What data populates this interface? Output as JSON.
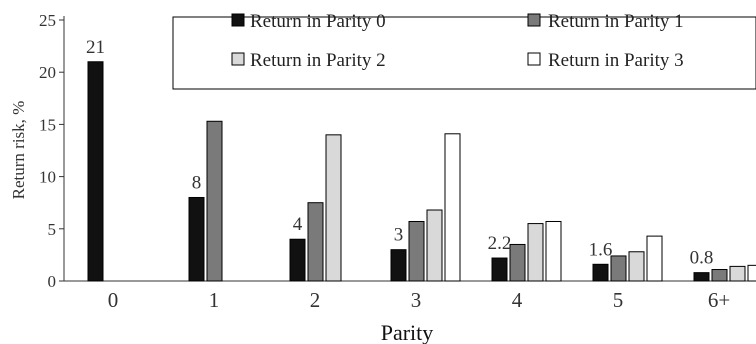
{
  "chart_data": {
    "type": "bar",
    "title": "",
    "xlabel": "Parity",
    "ylabel": "Return risk, %",
    "ylim": [
      0,
      25
    ],
    "yticks": [
      0,
      5,
      10,
      15,
      20,
      25
    ],
    "grid": false,
    "legend_position": "top-right",
    "categories": [
      "0",
      "1",
      "2",
      "3",
      "4",
      "5",
      "6+"
    ],
    "series": [
      {
        "name": "Return in Parity 0",
        "color": "#111111",
        "values": [
          21,
          8,
          4,
          3,
          2.2,
          1.6,
          0.8
        ]
      },
      {
        "name": "Return in Parity 1",
        "color": "#7a7a7a",
        "values": [
          null,
          15.3,
          7.5,
          5.7,
          3.5,
          2.4,
          1.1
        ]
      },
      {
        "name": "Return in Parity 2",
        "color": "#d9d9d9",
        "values": [
          null,
          null,
          14.0,
          6.8,
          5.5,
          2.8,
          1.4
        ]
      },
      {
        "name": "Return in Parity 3",
        "color": "#ffffff",
        "values": [
          null,
          null,
          null,
          14.1,
          5.7,
          4.3,
          1.5
        ]
      }
    ],
    "data_labels": [
      "21",
      "8",
      "4",
      "3",
      "2.2",
      "1.6",
      "0.8"
    ]
  }
}
